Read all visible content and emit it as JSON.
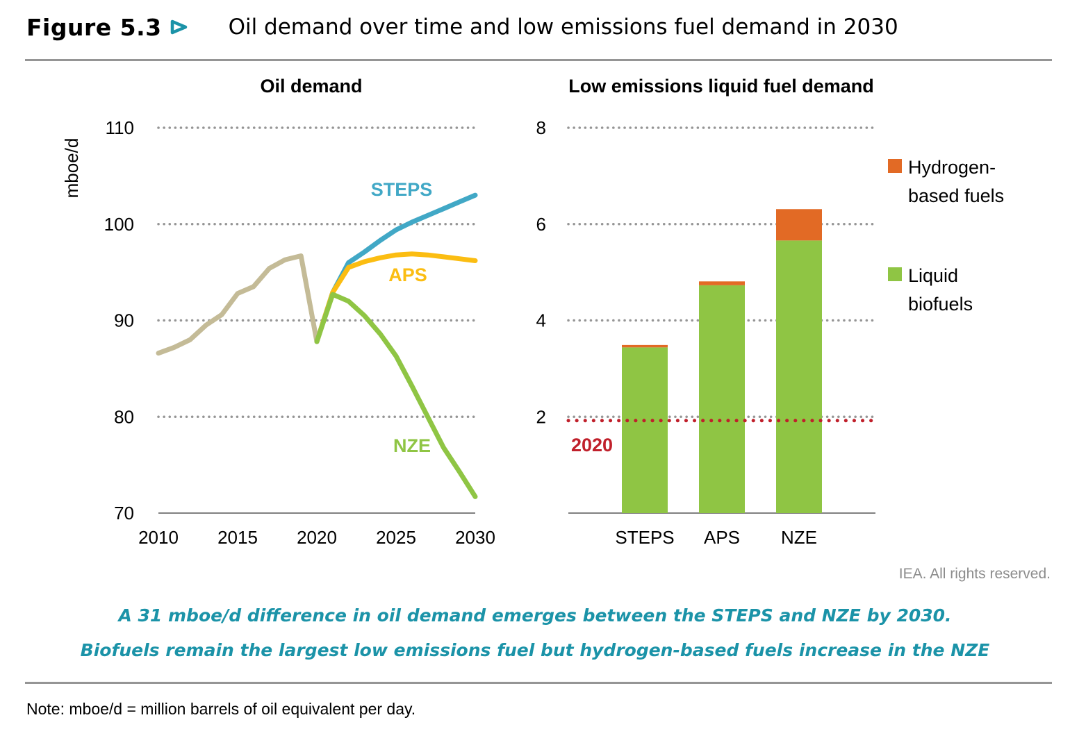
{
  "figure": {
    "number_label": "Figure 5.3",
    "arrow_icon": "triangle-right-icon",
    "title": "Oil demand over time and low emissions fuel demand in 2030"
  },
  "colors": {
    "historical": "#c4bb97",
    "steps": "#41a8c6",
    "aps": "#fbbd12",
    "nze": "#8fc544",
    "hydrogen": "#e26a25",
    "biofuels": "#8fc544",
    "baseline_2020": "#c0202b",
    "grid": "#959595",
    "accent": "#1b93a8"
  },
  "chart_data": [
    {
      "type": "line",
      "title": "Oil demand",
      "xlabel": "",
      "ylabel": "mboe/d",
      "xlim": [
        2010,
        2030
      ],
      "ylim": [
        70,
        110
      ],
      "x_ticks": [
        "2010",
        "2015",
        "2020",
        "2025",
        "2030"
      ],
      "y_ticks": [
        "70",
        "80",
        "90",
        "100",
        "110"
      ],
      "grid": "horizontal dotted",
      "series": [
        {
          "name": "Historical",
          "color_key": "historical",
          "x": [
            2010,
            2011,
            2012,
            2013,
            2014,
            2015,
            2016,
            2017,
            2018,
            2019,
            2020
          ],
          "values": [
            86.6,
            87.2,
            88.0,
            89.5,
            90.6,
            92.8,
            93.5,
            95.4,
            96.3,
            96.7,
            87.8
          ]
        },
        {
          "name": "STEPS",
          "label": "STEPS",
          "color_key": "steps",
          "x": [
            2020,
            2021,
            2022,
            2023,
            2024,
            2025,
            2026,
            2027,
            2028,
            2029,
            2030
          ],
          "values": [
            87.8,
            92.9,
            96.0,
            97.1,
            98.3,
            99.4,
            100.2,
            100.9,
            101.6,
            102.3,
            103.0
          ]
        },
        {
          "name": "APS",
          "label": "APS",
          "color_key": "aps",
          "x": [
            2020,
            2021,
            2022,
            2023,
            2024,
            2025,
            2026,
            2027,
            2028,
            2029,
            2030
          ],
          "values": [
            87.8,
            92.9,
            95.5,
            96.1,
            96.5,
            96.8,
            96.9,
            96.8,
            96.6,
            96.4,
            96.2
          ]
        },
        {
          "name": "NZE",
          "label": "NZE",
          "color_key": "nze",
          "x": [
            2020,
            2021,
            2022,
            2023,
            2024,
            2025,
            2026,
            2027,
            2028,
            2029,
            2030
          ],
          "values": [
            87.8,
            92.7,
            92.0,
            90.5,
            88.6,
            86.3,
            83.2,
            80.0,
            76.8,
            74.3,
            71.7
          ]
        }
      ]
    },
    {
      "type": "bar",
      "stacked": true,
      "title": "Low emissions liquid fuel demand",
      "xlabel": "",
      "ylabel": "",
      "categories": [
        "STEPS",
        "APS",
        "NZE"
      ],
      "ylim": [
        0,
        8
      ],
      "y_ticks": [
        "2",
        "4",
        "6",
        "8"
      ],
      "grid": "horizontal dotted",
      "series": [
        {
          "name": "Liquid biofuels",
          "color_key": "biofuels",
          "values": [
            3.44,
            4.73,
            5.66
          ]
        },
        {
          "name": "Hydrogen-based fuels",
          "color_key": "hydrogen",
          "values": [
            0.05,
            0.08,
            0.65
          ]
        }
      ],
      "reference_line": {
        "label": "2020",
        "value": 1.92,
        "color_key": "baseline_2020"
      },
      "legend": {
        "placement": "right",
        "items": [
          {
            "lines": [
              "Hydrogen-",
              "based fuels"
            ],
            "color_key": "hydrogen"
          },
          {
            "lines": [
              "Liquid",
              "biofuels"
            ],
            "color_key": "biofuels"
          }
        ]
      }
    }
  ],
  "credit": "IEA. All rights reserved.",
  "caption": {
    "line1": "A 31 mboe/d difference in oil demand emerges between the STEPS and NZE by 2030.",
    "line2": "Biofuels remain the largest low emissions fuel but hydrogen-based fuels increase in the NZE"
  },
  "note": "Note: mboe/d = million barrels of oil equivalent per day."
}
